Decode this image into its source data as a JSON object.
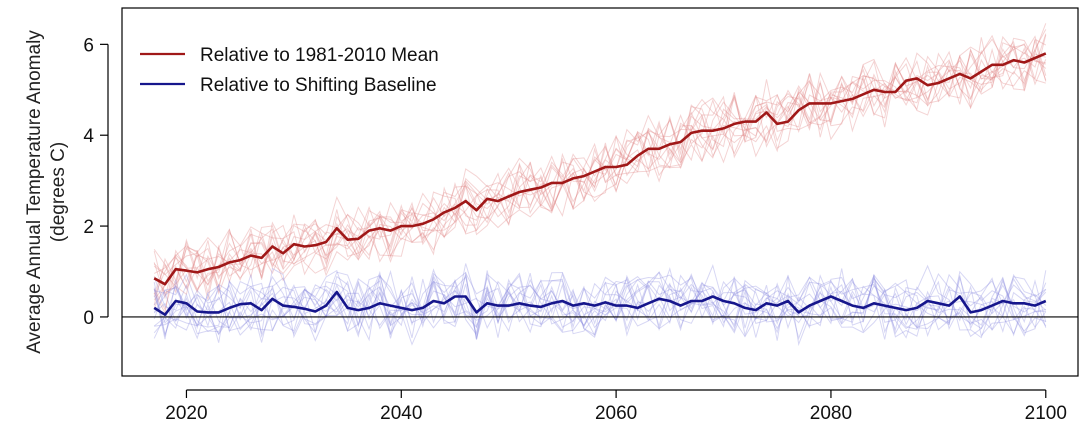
{
  "chart_data": {
    "type": "line",
    "title": "",
    "xlabel": "",
    "ylabel": "Average Annual Temperature Anomaly",
    "ylabel_line2": "(degrees C)",
    "xlim": [
      2014,
      2103
    ],
    "ylim": [
      -1.3,
      6.8
    ],
    "x_ticks": [
      2020,
      2040,
      2060,
      2080,
      2100
    ],
    "y_ticks": [
      0,
      2,
      4,
      6
    ],
    "grid": false,
    "legend_position": "top-left",
    "reference_line_y": 0,
    "x": [
      2017,
      2018,
      2019,
      2020,
      2021,
      2022,
      2023,
      2024,
      2025,
      2026,
      2027,
      2028,
      2029,
      2030,
      2031,
      2032,
      2033,
      2034,
      2035,
      2036,
      2037,
      2038,
      2039,
      2040,
      2041,
      2042,
      2043,
      2044,
      2045,
      2046,
      2047,
      2048,
      2049,
      2050,
      2051,
      2052,
      2053,
      2054,
      2055,
      2056,
      2057,
      2058,
      2059,
      2060,
      2061,
      2062,
      2063,
      2064,
      2065,
      2066,
      2067,
      2068,
      2069,
      2070,
      2071,
      2072,
      2073,
      2074,
      2075,
      2076,
      2077,
      2078,
      2079,
      2080,
      2081,
      2082,
      2083,
      2084,
      2085,
      2086,
      2087,
      2088,
      2089,
      2090,
      2091,
      2092,
      2093,
      2094,
      2095,
      2096,
      2097,
      2098,
      2099,
      2100
    ],
    "series": [
      {
        "name": "Relative to 1981-2010 Mean",
        "color": "#a01818",
        "ensemble_color": "#e08585",
        "values": [
          0.85,
          0.72,
          1.05,
          1.02,
          0.98,
          1.05,
          1.1,
          1.2,
          1.25,
          1.35,
          1.3,
          1.55,
          1.4,
          1.6,
          1.55,
          1.58,
          1.65,
          1.95,
          1.7,
          1.72,
          1.9,
          1.95,
          1.9,
          2.0,
          2.0,
          2.05,
          2.15,
          2.3,
          2.4,
          2.55,
          2.35,
          2.6,
          2.55,
          2.65,
          2.75,
          2.8,
          2.85,
          2.95,
          2.95,
          3.05,
          3.1,
          3.2,
          3.3,
          3.3,
          3.35,
          3.55,
          3.7,
          3.7,
          3.8,
          3.85,
          4.05,
          4.1,
          4.1,
          4.15,
          4.25,
          4.3,
          4.3,
          4.5,
          4.25,
          4.3,
          4.55,
          4.7,
          4.7,
          4.7,
          4.75,
          4.8,
          4.9,
          5.0,
          4.95,
          4.95,
          5.2,
          5.25,
          5.1,
          5.15,
          5.25,
          5.35,
          5.25,
          5.4,
          5.55,
          5.55,
          5.65,
          5.6,
          5.7,
          5.8
        ]
      },
      {
        "name": "Relative to Shifting Baseline",
        "color": "#16168c",
        "ensemble_color": "#8c8ce0",
        "values": [
          0.2,
          0.05,
          0.35,
          0.3,
          0.12,
          0.1,
          0.1,
          0.2,
          0.28,
          0.3,
          0.15,
          0.4,
          0.25,
          0.22,
          0.18,
          0.12,
          0.25,
          0.55,
          0.2,
          0.15,
          0.2,
          0.3,
          0.25,
          0.2,
          0.15,
          0.2,
          0.35,
          0.3,
          0.45,
          0.45,
          0.1,
          0.3,
          0.25,
          0.25,
          0.3,
          0.25,
          0.22,
          0.3,
          0.35,
          0.25,
          0.3,
          0.25,
          0.32,
          0.25,
          0.25,
          0.2,
          0.3,
          0.4,
          0.35,
          0.25,
          0.35,
          0.35,
          0.45,
          0.35,
          0.3,
          0.2,
          0.15,
          0.3,
          0.25,
          0.35,
          0.1,
          0.25,
          0.35,
          0.45,
          0.35,
          0.25,
          0.2,
          0.3,
          0.25,
          0.2,
          0.15,
          0.2,
          0.35,
          0.3,
          0.25,
          0.45,
          0.1,
          0.15,
          0.25,
          0.35,
          0.3,
          0.3,
          0.25,
          0.35
        ]
      }
    ],
    "ensemble_members": 14
  }
}
